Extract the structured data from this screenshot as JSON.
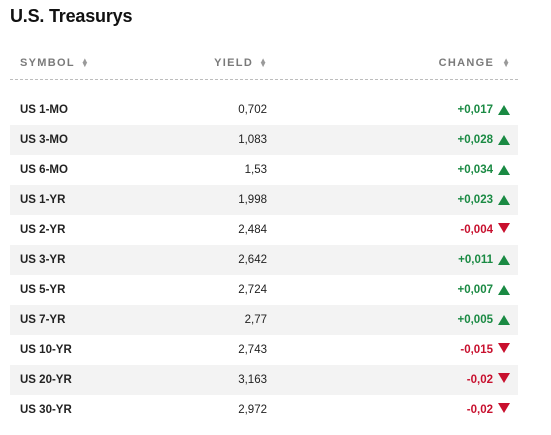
{
  "title": "U.S. Treasurys",
  "columns": {
    "symbol": "SYMBOL",
    "yield": "YIELD",
    "change": "CHANGE"
  },
  "colors": {
    "up": "#1a8a43",
    "down": "#c8102e"
  },
  "rows": [
    {
      "symbol": "US 1-MO",
      "yield": "0,702",
      "change": "+0,017",
      "direction": "up"
    },
    {
      "symbol": "US 3-MO",
      "yield": "1,083",
      "change": "+0,028",
      "direction": "up"
    },
    {
      "symbol": "US 6-MO",
      "yield": "1,53",
      "change": "+0,034",
      "direction": "up"
    },
    {
      "symbol": "US 1-YR",
      "yield": "1,998",
      "change": "+0,023",
      "direction": "up"
    },
    {
      "symbol": "US 2-YR",
      "yield": "2,484",
      "change": "-0,004",
      "direction": "down"
    },
    {
      "symbol": "US 3-YR",
      "yield": "2,642",
      "change": "+0,011",
      "direction": "up"
    },
    {
      "symbol": "US 5-YR",
      "yield": "2,724",
      "change": "+0,007",
      "direction": "up"
    },
    {
      "symbol": "US 7-YR",
      "yield": "2,77",
      "change": "+0,005",
      "direction": "up"
    },
    {
      "symbol": "US 10-YR",
      "yield": "2,743",
      "change": "-0,015",
      "direction": "down"
    },
    {
      "symbol": "US 20-YR",
      "yield": "3,163",
      "change": "-0,02",
      "direction": "down"
    },
    {
      "symbol": "US 30-YR",
      "yield": "2,972",
      "change": "-0,02",
      "direction": "down"
    }
  ]
}
